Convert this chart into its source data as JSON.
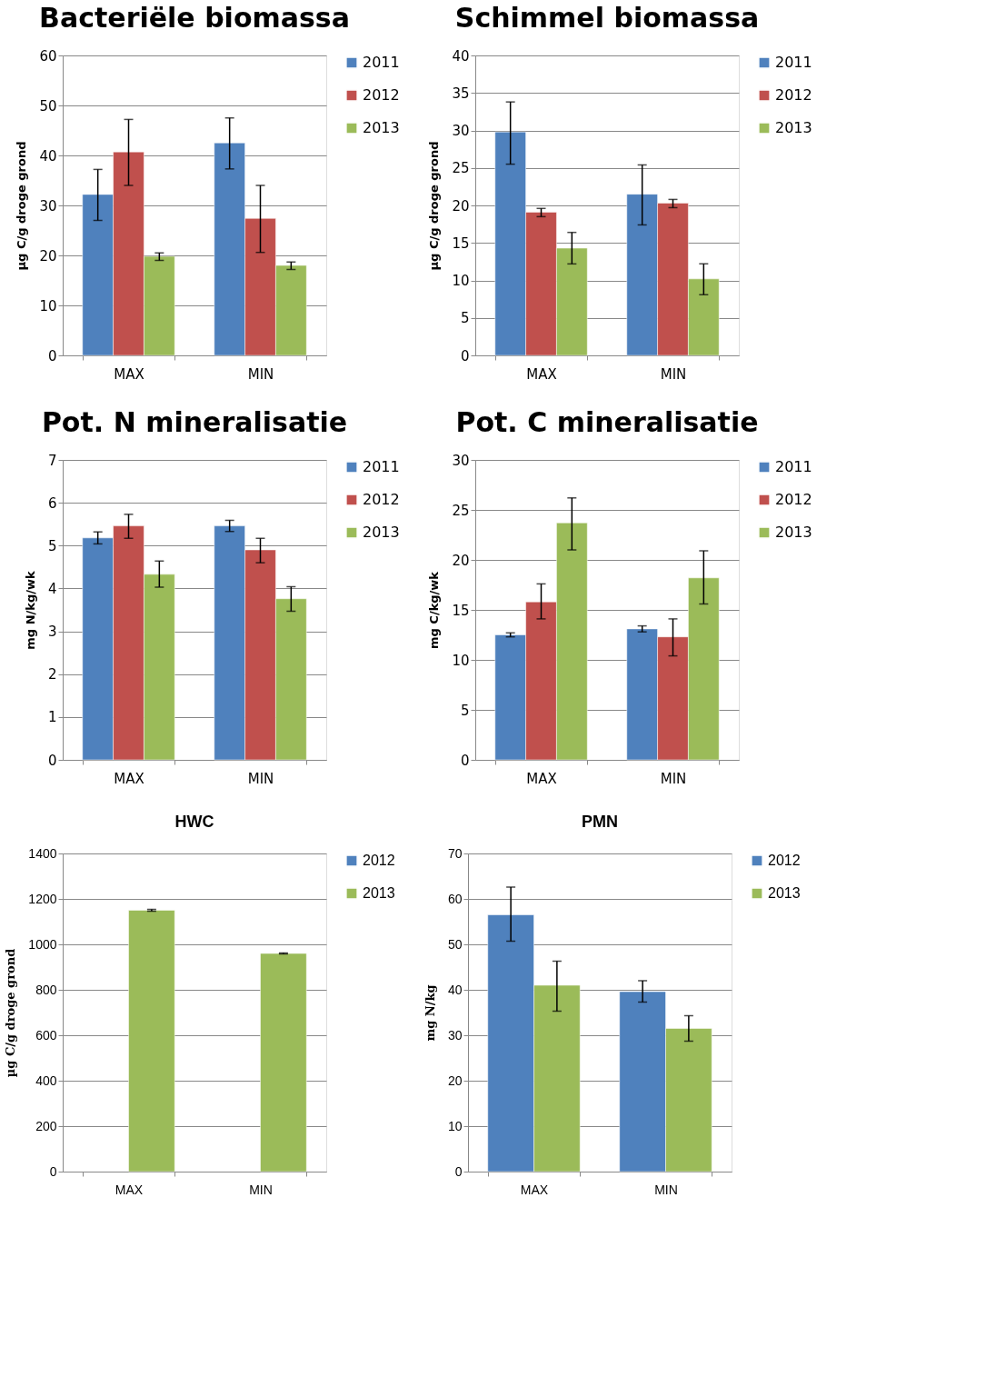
{
  "chart_data": [
    {
      "type": "bar",
      "title": "Bacteriële biomassa",
      "ylabel": "µg C/g droge grond",
      "categories": [
        "MAX",
        "MIN"
      ],
      "ylim": [
        0,
        60
      ],
      "yticks": [
        0,
        10,
        20,
        30,
        40,
        50,
        60
      ],
      "grid": "y",
      "legend": "right",
      "series": [
        {
          "name": "2011",
          "color": "#4f81bd",
          "values": [
            32.2,
            42.5
          ],
          "errors": [
            [
              27,
              37.2
            ],
            [
              37.3,
              47.5
            ]
          ]
        },
        {
          "name": "2012",
          "color": "#c0504d",
          "values": [
            40.7,
            27.4
          ],
          "errors": [
            [
              34,
              47.2
            ],
            [
              20.6,
              34
            ]
          ]
        },
        {
          "name": "2013",
          "color": "#9bbb59",
          "values": [
            19.8,
            18
          ],
          "errors": [
            [
              19,
              20.5
            ],
            [
              17.2,
              18.7
            ]
          ]
        }
      ]
    },
    {
      "type": "bar",
      "title": "Schimmel biomassa",
      "ylabel": "µg C/g droge grond",
      "categories": [
        "MAX",
        "MIN"
      ],
      "ylim": [
        0,
        40
      ],
      "yticks": [
        0,
        5,
        10,
        15,
        20,
        25,
        30,
        35,
        40
      ],
      "grid": "y",
      "legend": "right",
      "series": [
        {
          "name": "2011",
          "color": "#4f81bd",
          "values": [
            29.8,
            21.5
          ],
          "errors": [
            [
              25.5,
              33.8
            ],
            [
              17.4,
              25.4
            ]
          ]
        },
        {
          "name": "2012",
          "color": "#c0504d",
          "values": [
            19.1,
            20.3
          ],
          "errors": [
            [
              18.5,
              19.6
            ],
            [
              19.7,
              20.8
            ]
          ]
        },
        {
          "name": "2013",
          "color": "#9bbb59",
          "values": [
            14.3,
            10.2
          ],
          "errors": [
            [
              12.2,
              16.4
            ],
            [
              8.1,
              12.2
            ]
          ]
        }
      ]
    },
    {
      "type": "bar",
      "title": "Pot. N mineralisatie",
      "ylabel": "mg N/kg/wk",
      "categories": [
        "MAX",
        "MIN"
      ],
      "ylim": [
        0,
        7
      ],
      "yticks": [
        0,
        1,
        2,
        3,
        4,
        5,
        6,
        7
      ],
      "grid": "y",
      "legend": "right",
      "series": [
        {
          "name": "2011",
          "color": "#4f81bd",
          "values": [
            5.18,
            5.46
          ],
          "errors": [
            [
              5.04,
              5.32
            ],
            [
              5.33,
              5.59
            ]
          ]
        },
        {
          "name": "2012",
          "color": "#c0504d",
          "values": [
            5.46,
            4.9
          ],
          "errors": [
            [
              5.17,
              5.73
            ],
            [
              4.6,
              5.17
            ]
          ]
        },
        {
          "name": "2013",
          "color": "#9bbb59",
          "values": [
            4.33,
            3.76
          ],
          "errors": [
            [
              4.03,
              4.64
            ],
            [
              3.47,
              4.04
            ]
          ]
        }
      ]
    },
    {
      "type": "bar",
      "title": "Pot. C mineralisatie",
      "ylabel": "mg C/kg/wk",
      "categories": [
        "MAX",
        "MIN"
      ],
      "ylim": [
        0,
        30
      ],
      "yticks": [
        0,
        5,
        10,
        15,
        20,
        25,
        30
      ],
      "grid": "y",
      "legend": "right",
      "series": [
        {
          "name": "2011",
          "color": "#4f81bd",
          "values": [
            12.5,
            13.1
          ],
          "errors": [
            [
              12.3,
              12.7
            ],
            [
              12.8,
              13.4
            ]
          ]
        },
        {
          "name": "2012",
          "color": "#c0504d",
          "values": [
            15.8,
            12.3
          ],
          "errors": [
            [
              14.1,
              17.6
            ],
            [
              10.4,
              14.1
            ]
          ]
        },
        {
          "name": "2013",
          "color": "#9bbb59",
          "values": [
            23.7,
            18.2
          ],
          "errors": [
            [
              21,
              26.2
            ],
            [
              15.6,
              20.9
            ]
          ]
        }
      ]
    },
    {
      "type": "bar",
      "title": "HWC",
      "ylabel": "µg C/g droge grond",
      "categories": [
        "MAX",
        "MIN"
      ],
      "ylim": [
        0,
        1400
      ],
      "yticks": [
        0,
        200,
        400,
        600,
        800,
        1000,
        1200,
        1400
      ],
      "grid": "y",
      "legend": "right",
      "series": [
        {
          "name": "2012",
          "color": "#4f81bd",
          "values": [
            null,
            null
          ]
        },
        {
          "name": "2013",
          "color": "#9bbb59",
          "values": [
            1150,
            960
          ],
          "errors": [
            4,
            2
          ]
        }
      ]
    },
    {
      "type": "bar",
      "title": "PMN",
      "ylabel": "mg N/kg",
      "categories": [
        "MAX",
        "MIN"
      ],
      "ylim": [
        0,
        70
      ],
      "yticks": [
        0,
        10,
        20,
        30,
        40,
        50,
        60,
        70
      ],
      "grid": "y",
      "legend": "right",
      "series": [
        {
          "name": "2012",
          "color": "#4f81bd",
          "values": [
            56.5,
            39.6
          ],
          "errors": [
            [
              50.7,
              62.6
            ],
            [
              37.3,
              42
            ]
          ]
        },
        {
          "name": "2013",
          "color": "#9bbb59",
          "values": [
            41,
            31.5
          ],
          "errors": [
            [
              35.3,
              46.3
            ],
            [
              28.7,
              34.3
            ]
          ]
        }
      ]
    }
  ]
}
